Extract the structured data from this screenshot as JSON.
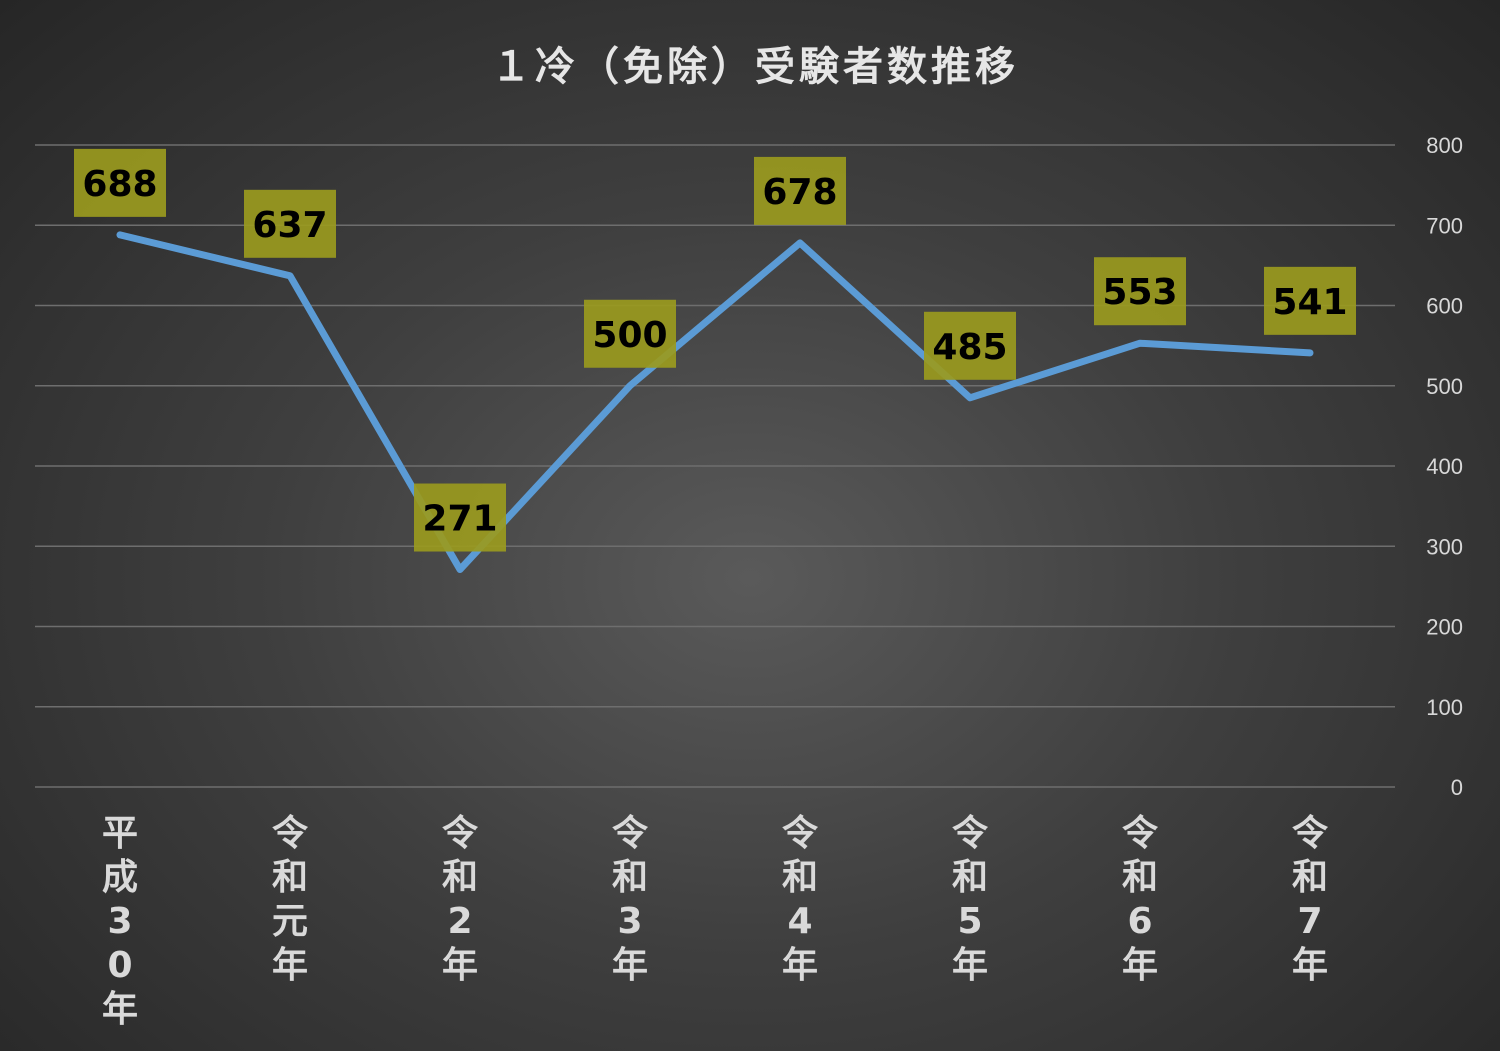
{
  "chart_data": {
    "type": "line",
    "title": "１冷（免除）受験者数推移",
    "categories": [
      "平成30年",
      "令和元年",
      "令和2年",
      "令和3年",
      "令和4年",
      "令和5年",
      "令和6年",
      "令和7年"
    ],
    "category_display": [
      [
        "平",
        "成",
        "3",
        "0",
        "年"
      ],
      [
        "令",
        "和",
        "元",
        "年"
      ],
      [
        "令",
        "和",
        "2",
        "年"
      ],
      [
        "令",
        "和",
        "3",
        "年"
      ],
      [
        "令",
        "和",
        "4",
        "年"
      ],
      [
        "令",
        "和",
        "5",
        "年"
      ],
      [
        "令",
        "和",
        "6",
        "年"
      ],
      [
        "令",
        "和",
        "7",
        "年"
      ]
    ],
    "series": [
      {
        "values": [
          688,
          637,
          271,
          500,
          678,
          485,
          553,
          541
        ]
      }
    ],
    "ylim": [
      0,
      800
    ],
    "yticks": [
      0,
      100,
      200,
      300,
      400,
      500,
      600,
      700,
      800
    ],
    "y_axis_side": "right",
    "grid": true,
    "legend": "none",
    "colors": {
      "line": "#5b9bd5",
      "label_box": "#9a9a1e",
      "grid": "#6e6e6e",
      "text": "#d9d9d9"
    }
  }
}
